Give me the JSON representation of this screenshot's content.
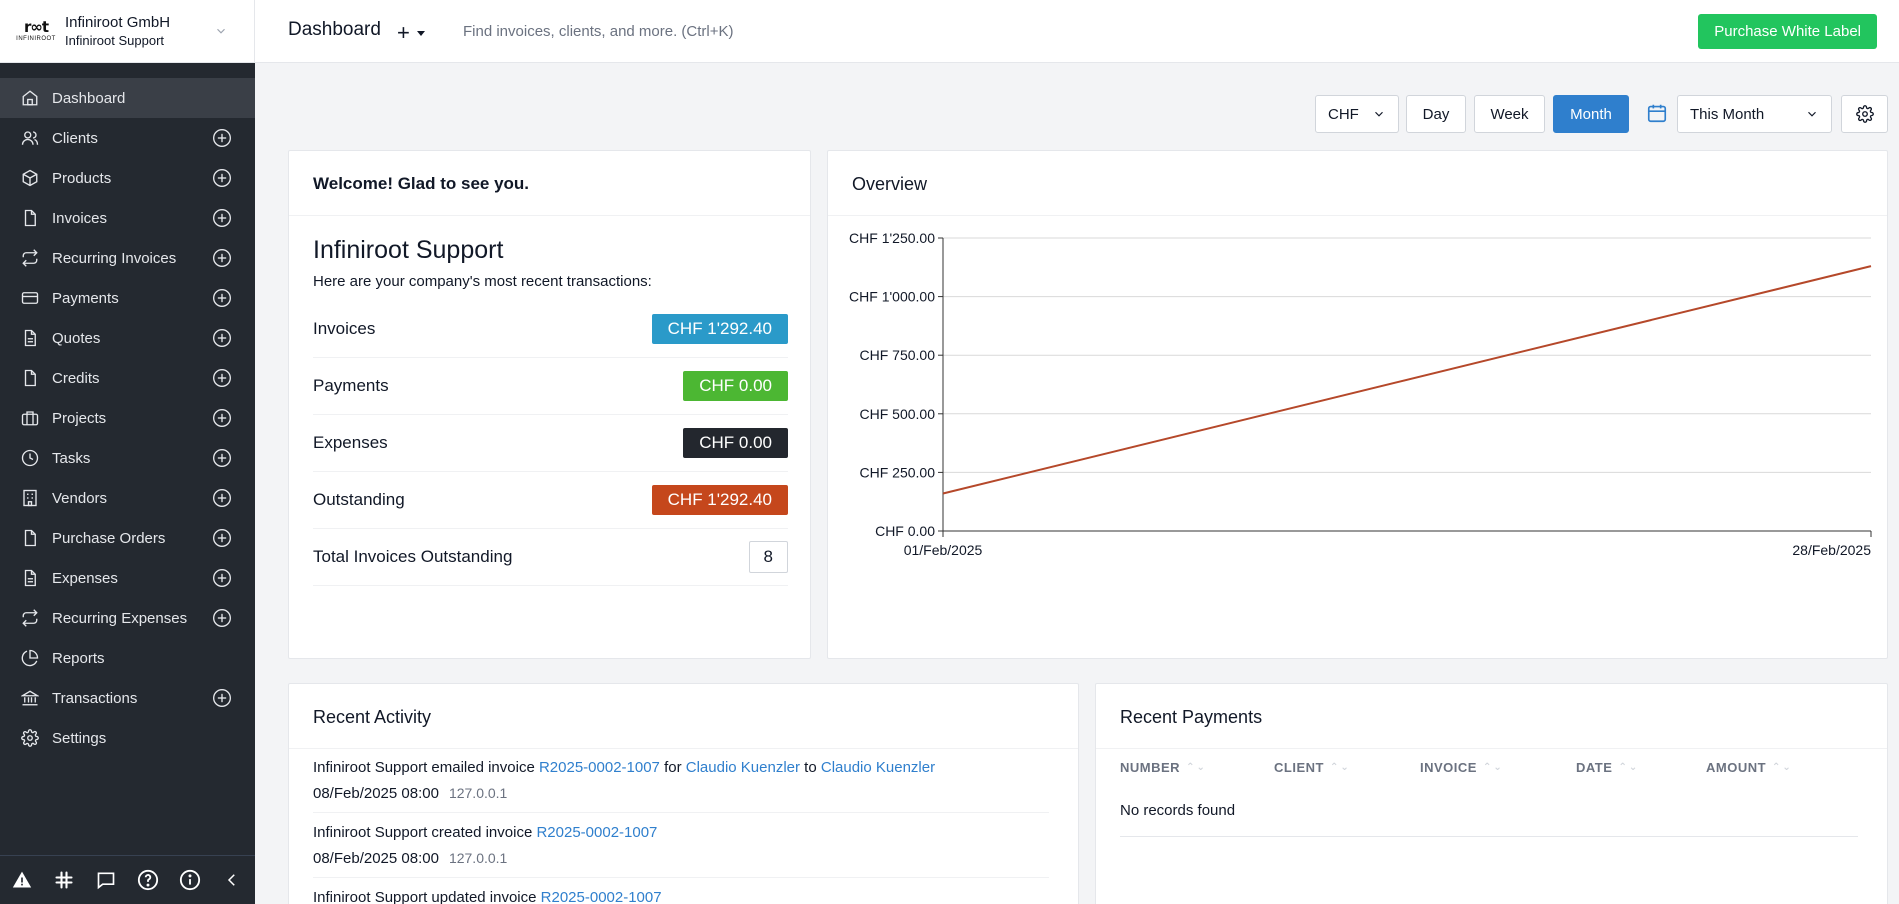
{
  "company": {
    "name": "Infiniroot GmbH",
    "subtitle": "Infiniroot Support",
    "logo_mark": "r∞t",
    "logo_text": "INFINIROOT"
  },
  "sidebar": {
    "items": [
      {
        "label": "Dashboard",
        "icon": "home-icon",
        "active": true,
        "add": false
      },
      {
        "label": "Clients",
        "icon": "users-icon",
        "add": true
      },
      {
        "label": "Products",
        "icon": "box-icon",
        "add": true
      },
      {
        "label": "Invoices",
        "icon": "file-icon",
        "add": true
      },
      {
        "label": "Recurring Invoices",
        "icon": "repeat-icon",
        "add": true
      },
      {
        "label": "Payments",
        "icon": "credit-card-icon",
        "add": true
      },
      {
        "label": "Quotes",
        "icon": "file-text-icon",
        "add": true
      },
      {
        "label": "Credits",
        "icon": "file-icon",
        "add": true
      },
      {
        "label": "Projects",
        "icon": "briefcase-icon",
        "add": true
      },
      {
        "label": "Tasks",
        "icon": "clock-icon",
        "add": true
      },
      {
        "label": "Vendors",
        "icon": "building-icon",
        "add": true
      },
      {
        "label": "Purchase Orders",
        "icon": "file-icon",
        "add": true
      },
      {
        "label": "Expenses",
        "icon": "file-text-icon",
        "add": true
      },
      {
        "label": "Recurring Expenses",
        "icon": "repeat-icon",
        "add": true
      },
      {
        "label": "Reports",
        "icon": "pie-chart-icon",
        "add": false
      },
      {
        "label": "Transactions",
        "icon": "bank-icon",
        "add": true
      },
      {
        "label": "Settings",
        "icon": "gear-icon",
        "add": false
      }
    ]
  },
  "topbar": {
    "title": "Dashboard",
    "add_symbol": "+",
    "search_placeholder": "Find invoices, clients, and more. (Ctrl+K)",
    "white_label_button": "Purchase White Label"
  },
  "toolbar": {
    "currency": "CHF",
    "day": "Day",
    "week": "Week",
    "month": "Month",
    "range": "This Month",
    "active_period": "Month"
  },
  "welcome": {
    "title": "Welcome! Glad to see you.",
    "company": "Infiniroot Support",
    "description": "Here are your company's most recent transactions:",
    "rows": [
      {
        "label": "Invoices",
        "value": "CHF 1'292.40",
        "color": "#2a9ac9"
      },
      {
        "label": "Payments",
        "value": "CHF 0.00",
        "color": "#4cb733"
      },
      {
        "label": "Expenses",
        "value": "CHF 0.00",
        "color": "#23272e"
      },
      {
        "label": "Outstanding",
        "value": "CHF 1'292.40",
        "color": "#c5471c"
      }
    ],
    "total_label": "Total Invoices Outstanding",
    "total_value": "8"
  },
  "overview": {
    "title": "Overview"
  },
  "chart_data": {
    "type": "line",
    "title": "",
    "x": [
      "01/Feb/2025",
      "28/Feb/2025"
    ],
    "series": [
      {
        "values": [
          160,
          1130
        ],
        "color": "#b5482a"
      }
    ],
    "ylim": [
      0,
      1250
    ],
    "yticks": [
      0,
      250,
      500,
      750,
      1000,
      1250
    ],
    "ytick_labels": [
      "CHF 0.00",
      "CHF 250.00",
      "CHF 500.00",
      "CHF 750.00",
      "CHF 1'000.00",
      "CHF 1'250.00"
    ],
    "xtick_labels": [
      "01/Feb/2025",
      "28/Feb/2025"
    ],
    "grid": true
  },
  "activity": {
    "title": "Recent Activity",
    "items": [
      {
        "prefix": "Infiniroot Support emailed invoice ",
        "invoice": "R2025-0002-1007",
        "mid1": " for ",
        "client": "Claudio Kuenzler",
        "mid2": " to ",
        "contact": "Claudio Kuenzler",
        "date": "08/Feb/2025 08:00",
        "ip": "127.0.0.1"
      },
      {
        "prefix": "Infiniroot Support created invoice ",
        "invoice": "R2025-0002-1007",
        "date": "08/Feb/2025 08:00",
        "ip": "127.0.0.1"
      },
      {
        "prefix": "Infiniroot Support updated invoice ",
        "invoice": "R2025-0002-1007"
      }
    ]
  },
  "payments": {
    "title": "Recent Payments",
    "columns": [
      "NUMBER",
      "CLIENT",
      "INVOICE",
      "DATE",
      "AMOUNT"
    ],
    "empty_text": "No records found"
  }
}
